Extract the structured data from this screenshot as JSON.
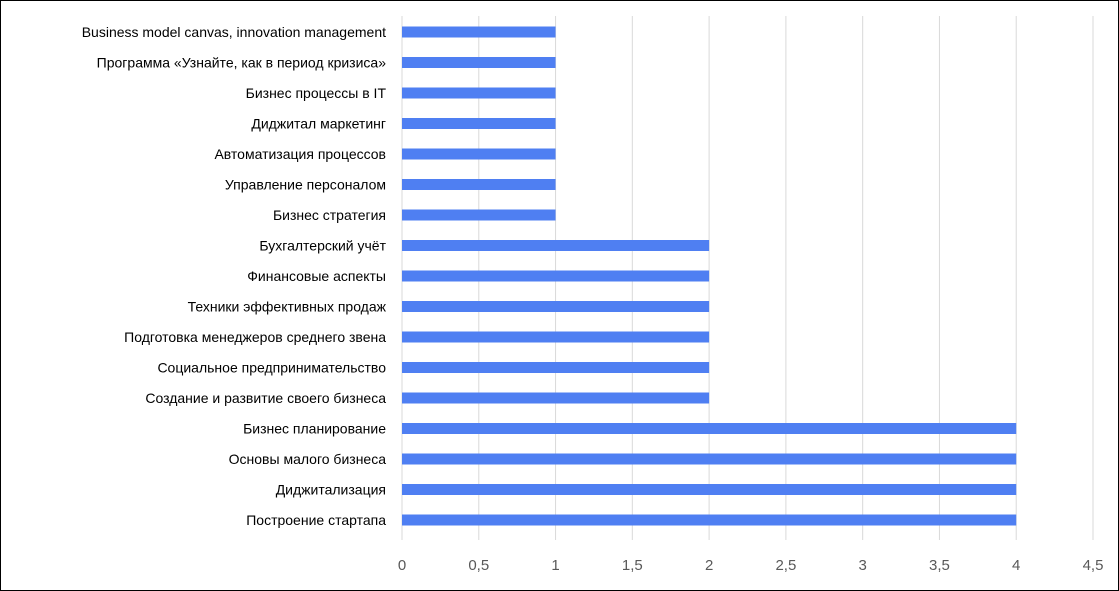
{
  "chart_data": {
    "type": "bar",
    "orientation": "horizontal",
    "categories": [
      "Business model canvas, innovation management",
      "Программа «Узнайте, как в период кризиса»",
      "Бизнес процессы в IT",
      "Диджитал маркетинг",
      "Автоматизация процессов",
      "Управление персоналом",
      "Бизнес стратегия",
      "Бухгалтерский учёт",
      "Финансовые аспекты",
      "Техники эффективных продаж",
      "Подготовка менеджеров среднего звена",
      "Социальное предпринимательство",
      "Создание и развитие своего бизнеса",
      "Бизнес планирование",
      "Основы малого бизнеса",
      "Диджитализация",
      "Построение стартапа"
    ],
    "values": [
      1,
      1,
      1,
      1,
      1,
      1,
      1,
      2,
      2,
      2,
      2,
      2,
      2,
      4,
      4,
      4,
      4
    ],
    "x_ticks": [
      "0",
      "0,5",
      "1",
      "1,5",
      "2",
      "2,5",
      "3",
      "3,5",
      "4",
      "4,5"
    ],
    "xlim": [
      0,
      4.5
    ],
    "grid": "vertical",
    "legend": "none",
    "title": "",
    "xlabel": "",
    "ylabel": "",
    "colors": {
      "bar": "#4f7ff2",
      "grid": "#d9d9d9",
      "tick_text": "#595959",
      "border": "#000000"
    }
  }
}
